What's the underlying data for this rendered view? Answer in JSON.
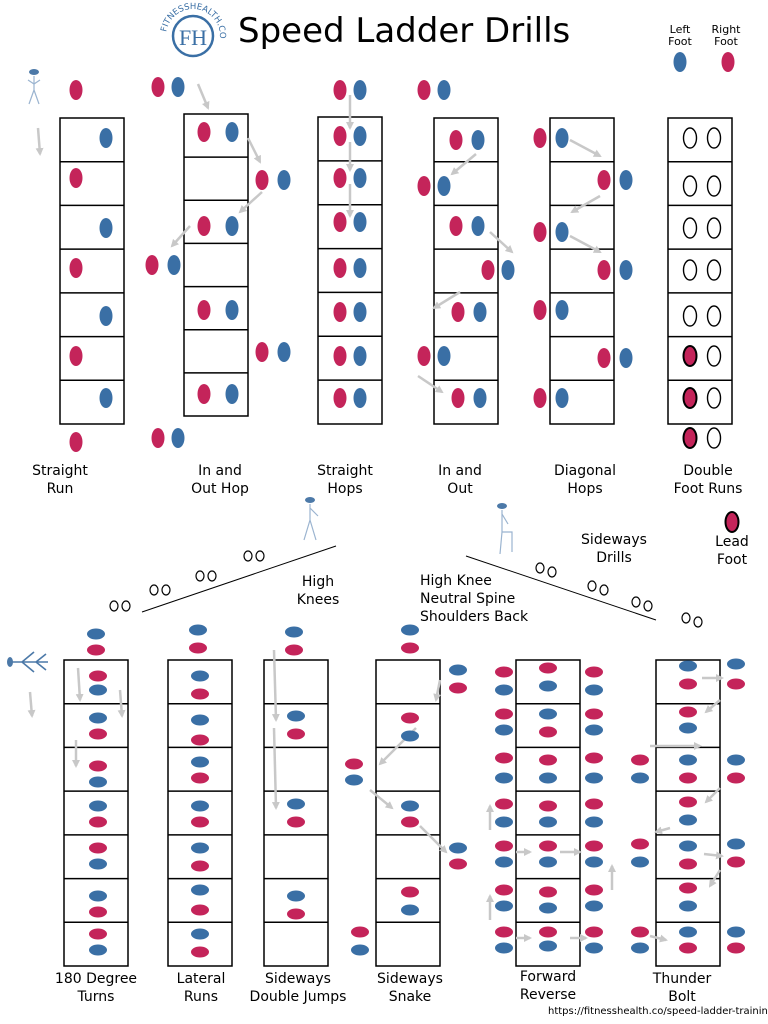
{
  "header": {
    "title": "Speed Ladder Drills",
    "logo_text": "FITNESSHEALTH.CO",
    "logo_initials": "FH"
  },
  "legend": {
    "left_foot": "Left Foot",
    "right_foot": "Right Foot",
    "lead_foot": "Lead Foot",
    "left_color": "#3a6fa5",
    "right_color": "#c4245a"
  },
  "drills": [
    {
      "name": "Straight Run"
    },
    {
      "name": "In and Out Hop"
    },
    {
      "name": "Straight Hops"
    },
    {
      "name": "In and Out"
    },
    {
      "name": "Diagonal Hops"
    },
    {
      "name": "Double Foot Runs"
    },
    {
      "name": "180 Degree Turns"
    },
    {
      "name": "Lateral Runs"
    },
    {
      "name": "Sideways Double Jumps"
    },
    {
      "name": "Sideways Snake"
    },
    {
      "name": "Forward Reverse"
    },
    {
      "name": "Thunder Bolt"
    }
  ],
  "notes": {
    "high_knees": "High Knees",
    "posture": [
      "High Knee",
      "Neutral Spine",
      "Shoulders Back"
    ],
    "sideways_drills": "Sideways Drills"
  },
  "footer": {
    "url": "https://fitnesshealth.co/speed-ladder-training"
  }
}
